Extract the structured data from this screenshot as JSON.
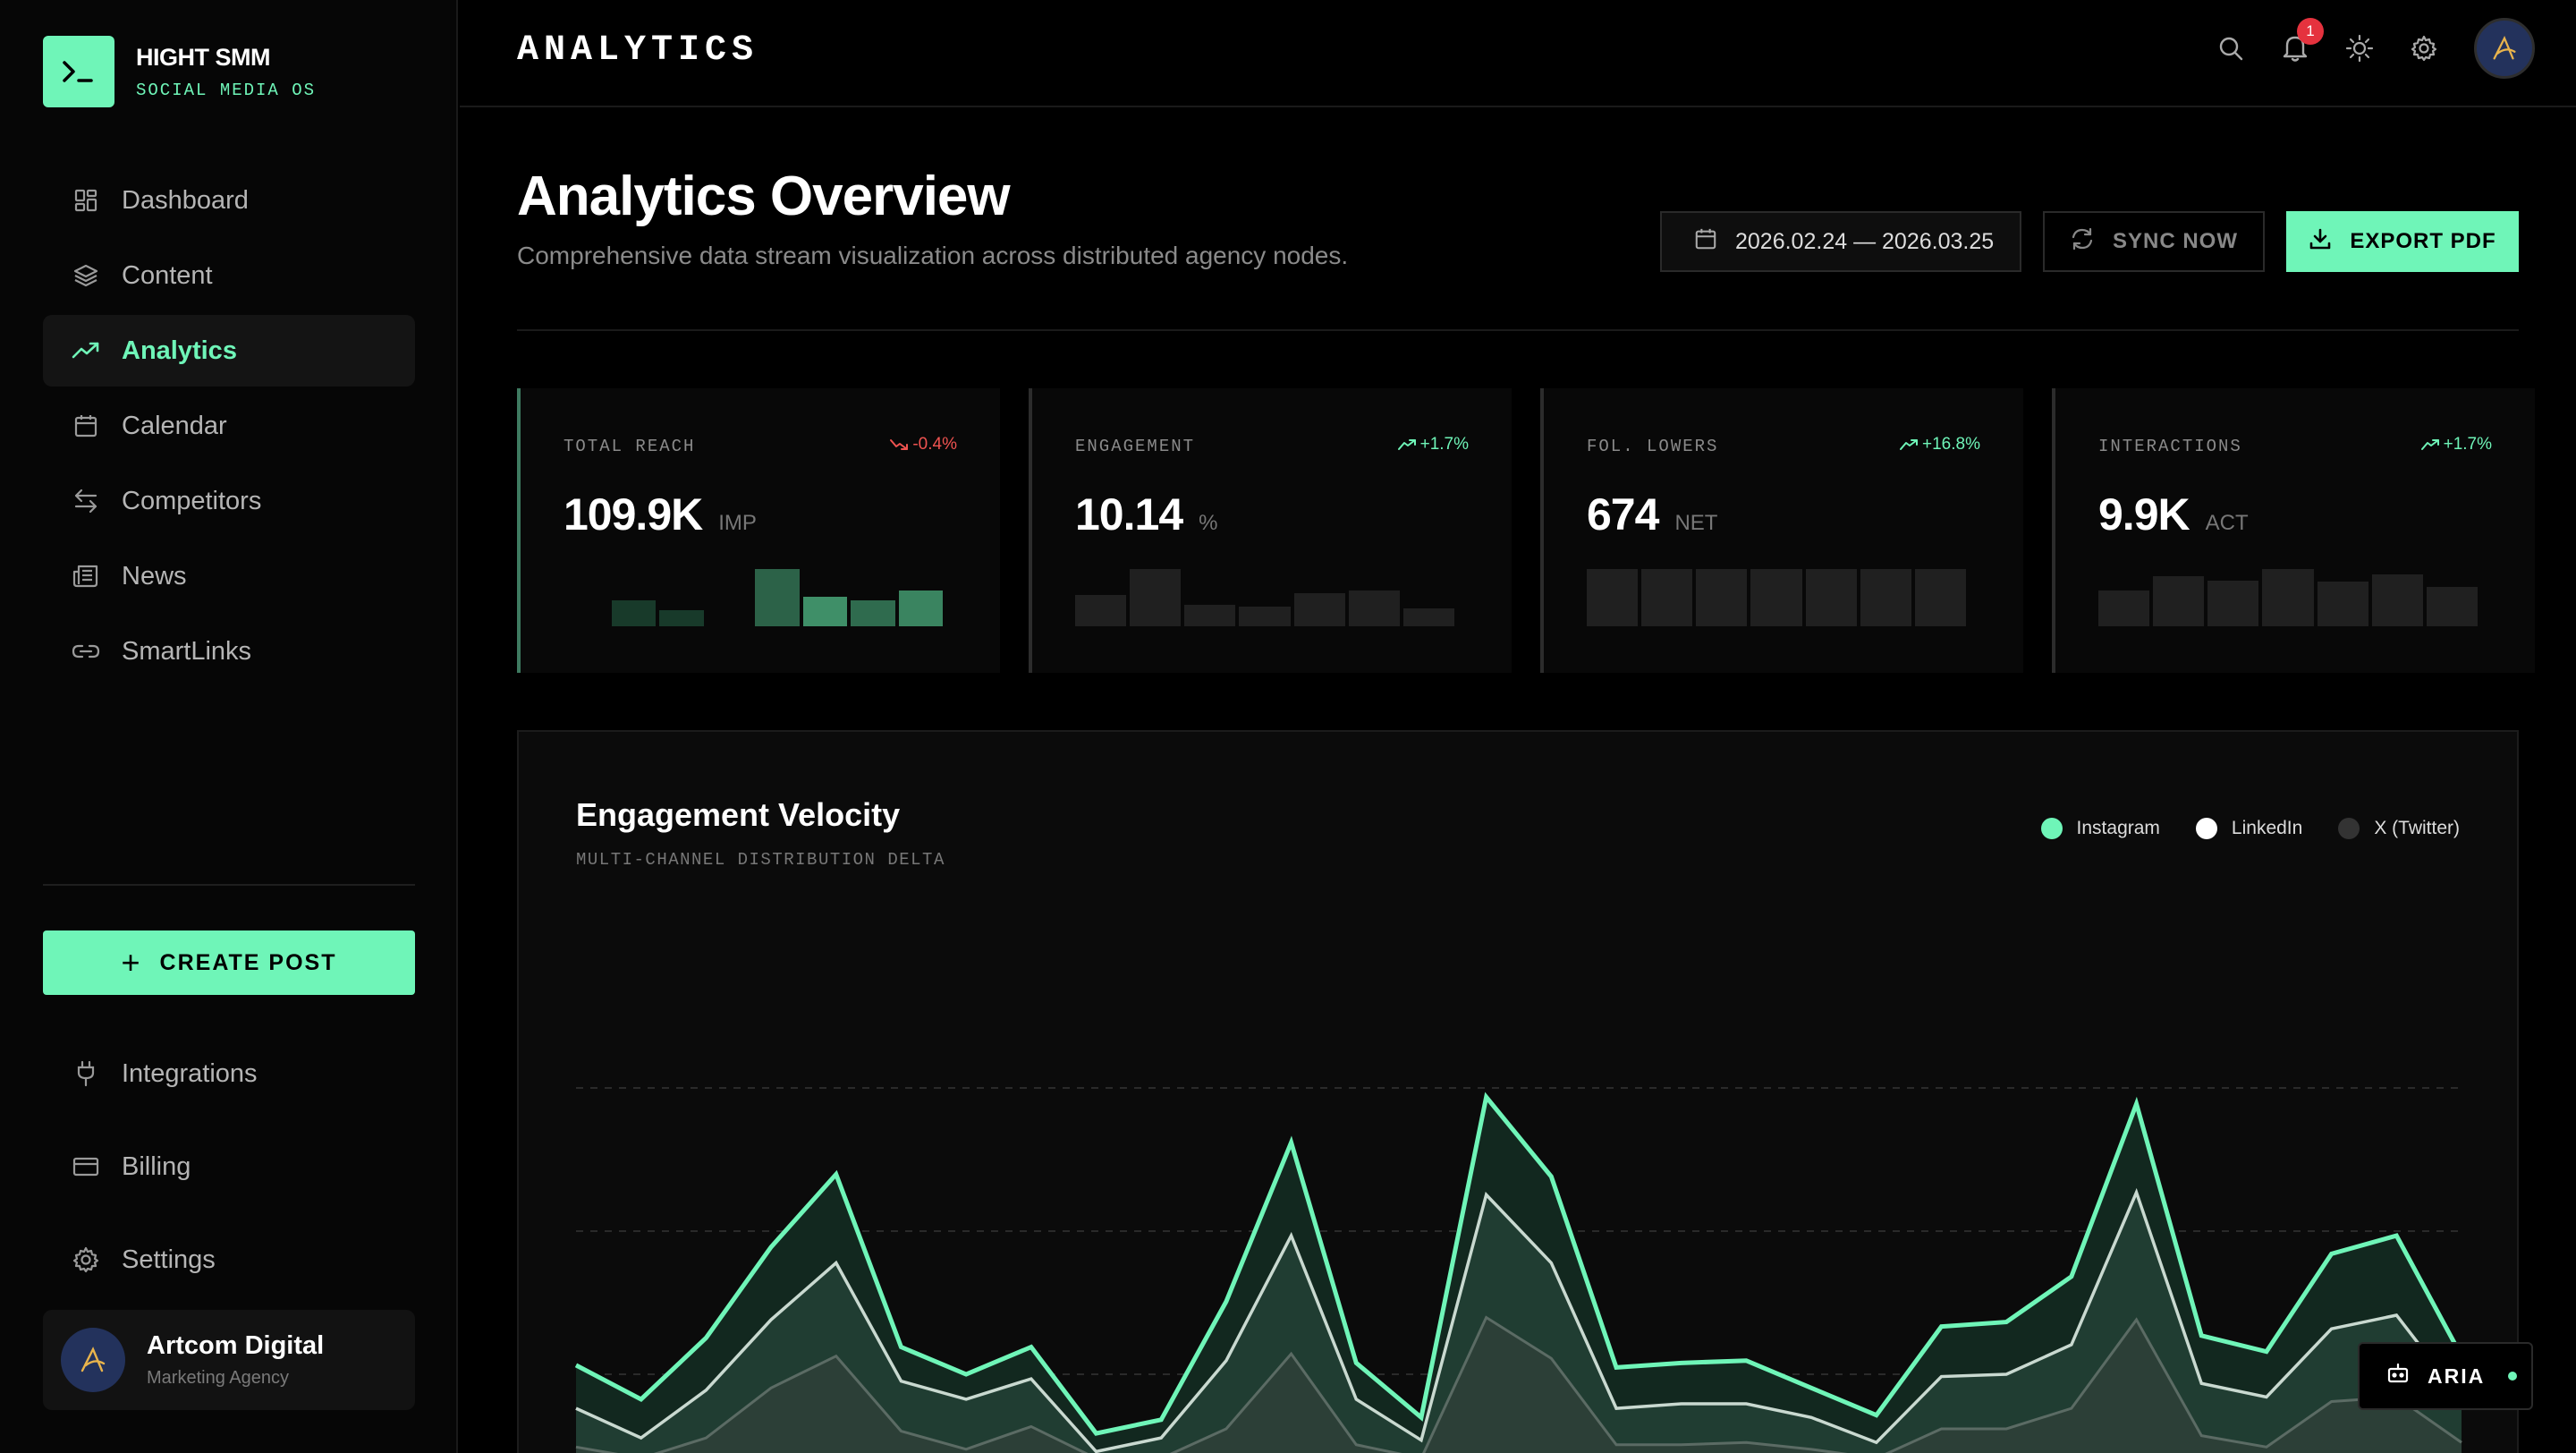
{
  "brand": {
    "name": "HIGHT SMM",
    "subtitle": "SOCIAL MEDIA OS",
    "logo_glyph": ">_"
  },
  "sidebar": {
    "items": [
      {
        "label": "Dashboard",
        "icon": "grid-icon"
      },
      {
        "label": "Content",
        "icon": "layers-icon"
      },
      {
        "label": "Analytics",
        "icon": "trending-up-icon",
        "active": true
      },
      {
        "label": "Calendar",
        "icon": "calendar-icon"
      },
      {
        "label": "Competitors",
        "icon": "arrows-swap-icon"
      },
      {
        "label": "News",
        "icon": "newspaper-icon"
      },
      {
        "label": "SmartLinks",
        "icon": "link-icon"
      }
    ],
    "create_label": "CREATE POST",
    "secondary": [
      {
        "label": "Integrations",
        "icon": "plug-icon"
      },
      {
        "label": "Billing",
        "icon": "credit-card-icon"
      },
      {
        "label": "Settings",
        "icon": "gear-icon"
      }
    ],
    "account": {
      "name": "Artcom Digital",
      "role": "Marketing Agency"
    }
  },
  "topbar": {
    "title": "ANALYTICS",
    "notifications_count": "1"
  },
  "page": {
    "title": "Analytics Overview",
    "subtitle": "Comprehensive data stream visualization across distributed agency nodes.",
    "date_range": "2026.02.24 — 2026.03.25",
    "sync_label": "SYNC NOW",
    "export_label": "EXPORT PDF"
  },
  "kpis": [
    {
      "label": "TOTAL REACH",
      "value": "109.9K",
      "unit": "IMP",
      "delta": "-0.4%",
      "trend": "down",
      "spark": [
        0,
        0.45,
        0.28,
        0,
        1,
        0.52,
        0.45,
        0.62
      ]
    },
    {
      "label": "ENGAGEMENT",
      "value": "10.14",
      "unit": "%",
      "delta": "+1.7%",
      "trend": "up",
      "spark": [
        0.55,
        1,
        0.38,
        0.35,
        0.58,
        0.62,
        0.32
      ]
    },
    {
      "label": "FOL. LOWERS",
      "value": "674",
      "unit": "NET",
      "delta": "+16.8%",
      "trend": "up",
      "spark": [
        1,
        1,
        1,
        1,
        1,
        1,
        1
      ]
    },
    {
      "label": "INTERACTIONS",
      "value": "9.9K",
      "unit": "ACT",
      "delta": "+1.7%",
      "trend": "up",
      "spark": [
        0.62,
        0.88,
        0.8,
        1,
        0.78,
        0.9,
        0.68
      ]
    }
  ],
  "chart": {
    "title": "Engagement Velocity",
    "subtitle": "MULTI-CHANNEL DISTRIBUTION DELTA"
  },
  "chart_data": {
    "type": "area",
    "title": "Engagement Velocity",
    "subtitle": "MULTI-CHANNEL DISTRIBUTION DELTA",
    "legend": "top-right",
    "grid": true,
    "ylim": [
      0,
      400
    ],
    "x": [
      1,
      2,
      3,
      4,
      5,
      6,
      7,
      8,
      9,
      10,
      11,
      12,
      13,
      14,
      15,
      16,
      17,
      18,
      19,
      20,
      21,
      22,
      23,
      24,
      25,
      26,
      27,
      28,
      29,
      30
    ],
    "series": [
      {
        "name": "Instagram",
        "color": "#6ff5b8",
        "values": [
          82,
          52,
          106,
          186,
          250,
          98,
          74,
          98,
          22,
          34,
          138,
          278,
          84,
          36,
          318,
          248,
          80,
          84,
          86,
          62,
          38,
          116,
          120,
          160,
          312,
          108,
          94,
          180,
          196,
          90
        ]
      },
      {
        "name": "LinkedIn",
        "color": "#ffffff",
        "values": [
          44,
          18,
          60,
          122,
          172,
          68,
          52,
          70,
          6,
          18,
          86,
          196,
          52,
          16,
          232,
          172,
          44,
          48,
          48,
          36,
          14,
          72,
          74,
          100,
          234,
          66,
          54,
          114,
          126,
          52
        ]
      },
      {
        "name": "X (Twitter)",
        "color": "#333333",
        "values": [
          10,
          0,
          18,
          62,
          90,
          24,
          8,
          28,
          0,
          0,
          26,
          92,
          12,
          0,
          124,
          88,
          12,
          12,
          14,
          8,
          0,
          26,
          26,
          44,
          122,
          20,
          10,
          50,
          54,
          14
        ]
      }
    ]
  },
  "colors": {
    "accent": "#6ff5b8",
    "negative": "#ef5350",
    "background": "#000000"
  },
  "assistant": {
    "label": "ARIA"
  }
}
